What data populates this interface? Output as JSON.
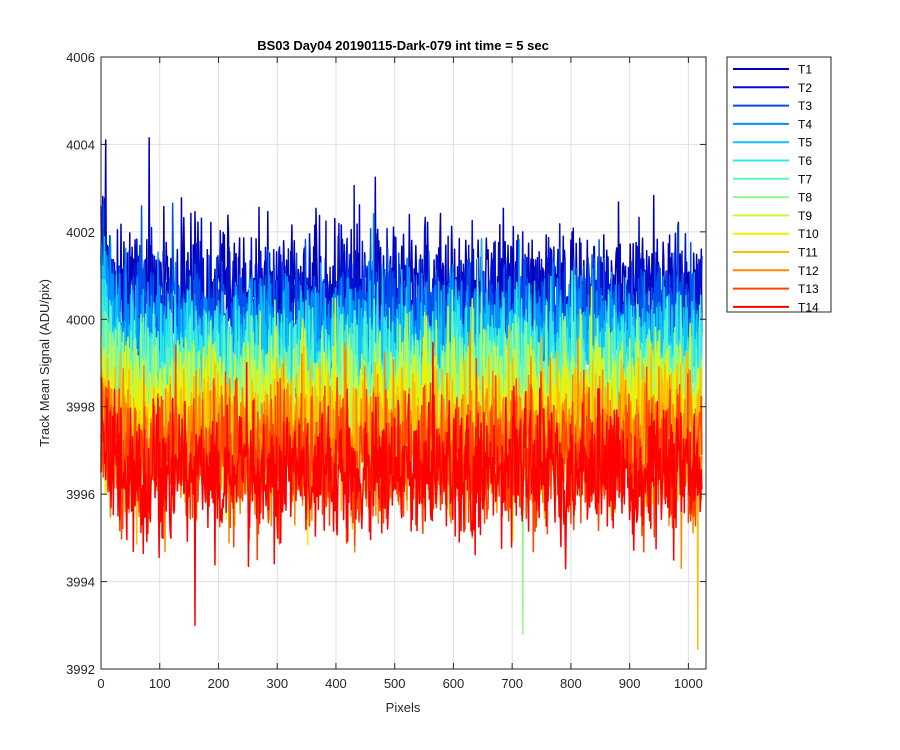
{
  "chart_data": {
    "type": "line",
    "title": "BS03 Day04 20190115-Dark-079 int time = 5 sec",
    "xlabel": "Pixels",
    "ylabel": "Track Mean Signal (ADU/pix)",
    "xlim": [
      0,
      1030
    ],
    "ylim": [
      3992,
      4006
    ],
    "xticks": [
      0,
      100,
      200,
      300,
      400,
      500,
      600,
      700,
      800,
      900,
      1000
    ],
    "yticks": [
      3992,
      3994,
      3996,
      3998,
      4000,
      4002,
      4004,
      4006
    ],
    "grid": true,
    "legend_position": "outside-top-right",
    "pixel_count": 1024,
    "series": [
      {
        "name": "T1",
        "color": "#0000b4",
        "mean": 4000.6,
        "spread": 0.75,
        "peaks": [
          {
            "x": 8,
            "y": 4004.1
          },
          {
            "x": 82,
            "y": 4004.15
          },
          {
            "x": 467,
            "y": 4003.25
          }
        ]
      },
      {
        "name": "T2",
        "color": "#0010d2",
        "mean": 4000.3,
        "spread": 0.75,
        "peaks": []
      },
      {
        "name": "T3",
        "color": "#0050ee",
        "mean": 3999.9,
        "spread": 0.75,
        "peaks": []
      },
      {
        "name": "T4",
        "color": "#0090ff",
        "mean": 3999.5,
        "spread": 0.75,
        "peaks": []
      },
      {
        "name": "T5",
        "color": "#10c0f8",
        "mean": 3999.2,
        "spread": 0.75,
        "peaks": []
      },
      {
        "name": "T6",
        "color": "#30e8e8",
        "mean": 3998.9,
        "spread": 0.75,
        "peaks": []
      },
      {
        "name": "T7",
        "color": "#60f4c0",
        "mean": 3998.6,
        "spread": 0.75,
        "peaks": []
      },
      {
        "name": "T8",
        "color": "#90f890",
        "mean": 3998.3,
        "spread": 0.75,
        "peaks": [
          {
            "x": 718,
            "y": 3992.8
          }
        ]
      },
      {
        "name": "T9",
        "color": "#c8f840",
        "mean": 3998.0,
        "spread": 0.75,
        "peaks": []
      },
      {
        "name": "T10",
        "color": "#f0f000",
        "mean": 3997.7,
        "spread": 0.75,
        "peaks": []
      },
      {
        "name": "T11",
        "color": "#f8c000",
        "mean": 3997.4,
        "spread": 0.75,
        "peaks": [
          {
            "x": 1016,
            "y": 3992.45
          }
        ]
      },
      {
        "name": "T12",
        "color": "#ff8800",
        "mean": 3997.1,
        "spread": 0.75,
        "peaks": []
      },
      {
        "name": "T13",
        "color": "#ff4400",
        "mean": 3996.8,
        "spread": 0.75,
        "peaks": []
      },
      {
        "name": "T14",
        "color": "#ff0000",
        "mean": 3996.5,
        "spread": 0.75,
        "peaks": [
          {
            "x": 160,
            "y": 3993.0
          }
        ]
      }
    ]
  }
}
